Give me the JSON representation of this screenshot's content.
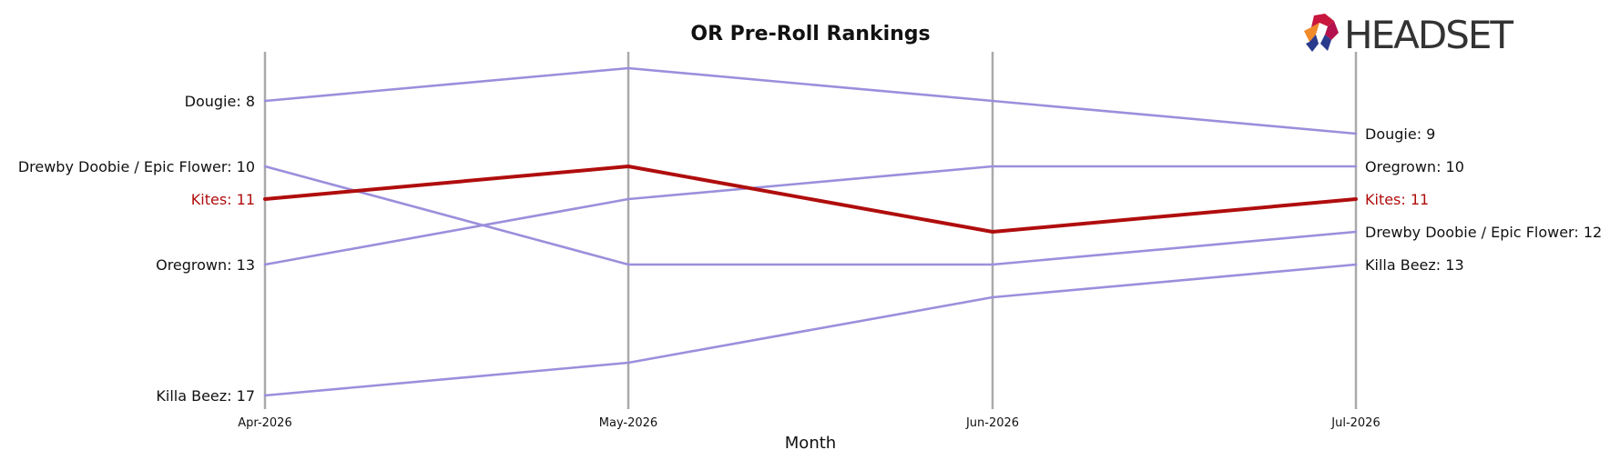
{
  "brand": {
    "logo_text": "HEADSET",
    "logo_colors": [
      "#e8412e",
      "#b3124f",
      "#7b2a8f",
      "#2a3a8c",
      "#f08a2a"
    ]
  },
  "chart_data": {
    "type": "line",
    "chart_style": "bump",
    "title": "OR Pre-Roll Rankings",
    "xlabel": "Month",
    "ylabel": "",
    "categories": [
      "Apr-2026",
      "May-2026",
      "Jun-2026",
      "Jul-2026"
    ],
    "y_reversed": true,
    "ylim": [
      6,
      17
    ],
    "grid": "vertical lines at each month",
    "legend": "none; series labeled at line ends",
    "series": [
      {
        "name": "Dougie",
        "values": [
          8,
          7,
          8,
          9
        ],
        "color": "#9b8fdc",
        "highlight": false,
        "start_label": "Dougie: 8",
        "end_label": "Dougie: 9"
      },
      {
        "name": "Drewby Doobie / Epic Flower",
        "values": [
          10,
          13,
          13,
          12
        ],
        "color": "#9b8fdc",
        "highlight": false,
        "start_label": "Drewby Doobie / Epic Flower: 10",
        "end_label": "Drewby Doobie / Epic Flower: 12"
      },
      {
        "name": "Oregrown",
        "values": [
          13,
          11,
          10,
          10
        ],
        "color": "#9b8fdc",
        "highlight": false,
        "start_label": "Oregrown: 13",
        "end_label": "Oregrown: 10"
      },
      {
        "name": "Killa Beez",
        "values": [
          17,
          16,
          14,
          13
        ],
        "color": "#9b8fdc",
        "highlight": false,
        "start_label": "Killa Beez: 17",
        "end_label": "Killa Beez: 13"
      },
      {
        "name": "Kites",
        "values": [
          11,
          10,
          12,
          11
        ],
        "color": "#b00d0d",
        "highlight": true,
        "start_label": "Kites: 11",
        "end_label": "Kites: 11"
      }
    ],
    "gridline_color": "#aaaaaa"
  }
}
